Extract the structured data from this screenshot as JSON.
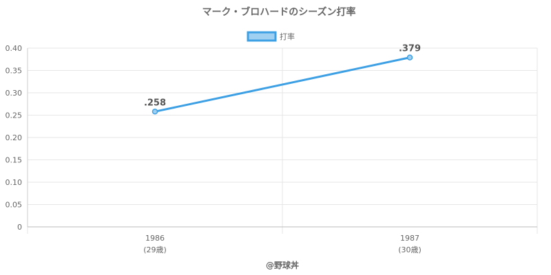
{
  "chart_data": {
    "type": "line",
    "title": "マーク・ブロハードのシーズン打率",
    "categories": [
      "1986",
      "1987"
    ],
    "category_sublabels": [
      "(29歳)",
      "(30歳)"
    ],
    "series": [
      {
        "name": "打率",
        "values": [
          0.258,
          0.379
        ],
        "value_labels": [
          ".258",
          ".379"
        ],
        "color": "#3ea0e4",
        "fill": "#9fd0f2"
      }
    ],
    "y_ticks": [
      "0",
      "0.05",
      "0.10",
      "0.15",
      "0.20",
      "0.25",
      "0.30",
      "0.35",
      "0.40"
    ],
    "ylim": [
      0,
      0.4
    ],
    "grid": true,
    "legend": "top-center",
    "credit": "@野球丼"
  }
}
